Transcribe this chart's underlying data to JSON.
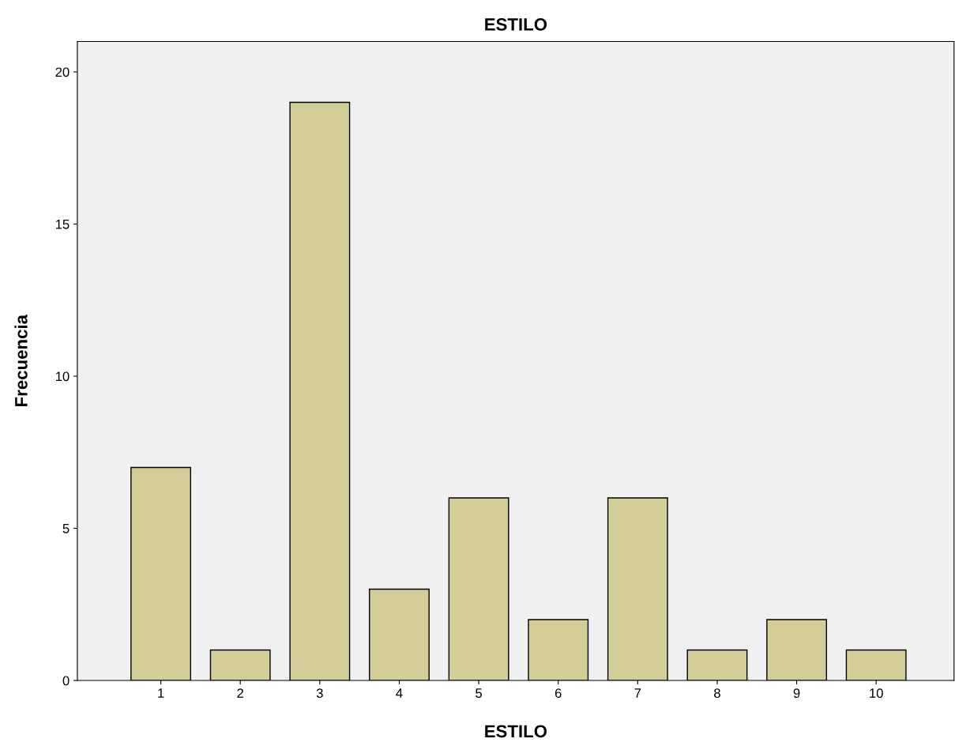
{
  "chart_data": {
    "type": "bar",
    "title": "ESTILO",
    "xlabel": "ESTILO",
    "ylabel": "Frecuencia",
    "categories": [
      "1",
      "2",
      "3",
      "4",
      "5",
      "6",
      "7",
      "8",
      "9",
      "10"
    ],
    "values": [
      7,
      1,
      19,
      3,
      6,
      2,
      6,
      1,
      2,
      1
    ],
    "color": "#d3ce97",
    "ylim": [
      0,
      21
    ],
    "yticks": [
      0,
      5,
      10,
      15,
      20
    ],
    "grid": false
  }
}
